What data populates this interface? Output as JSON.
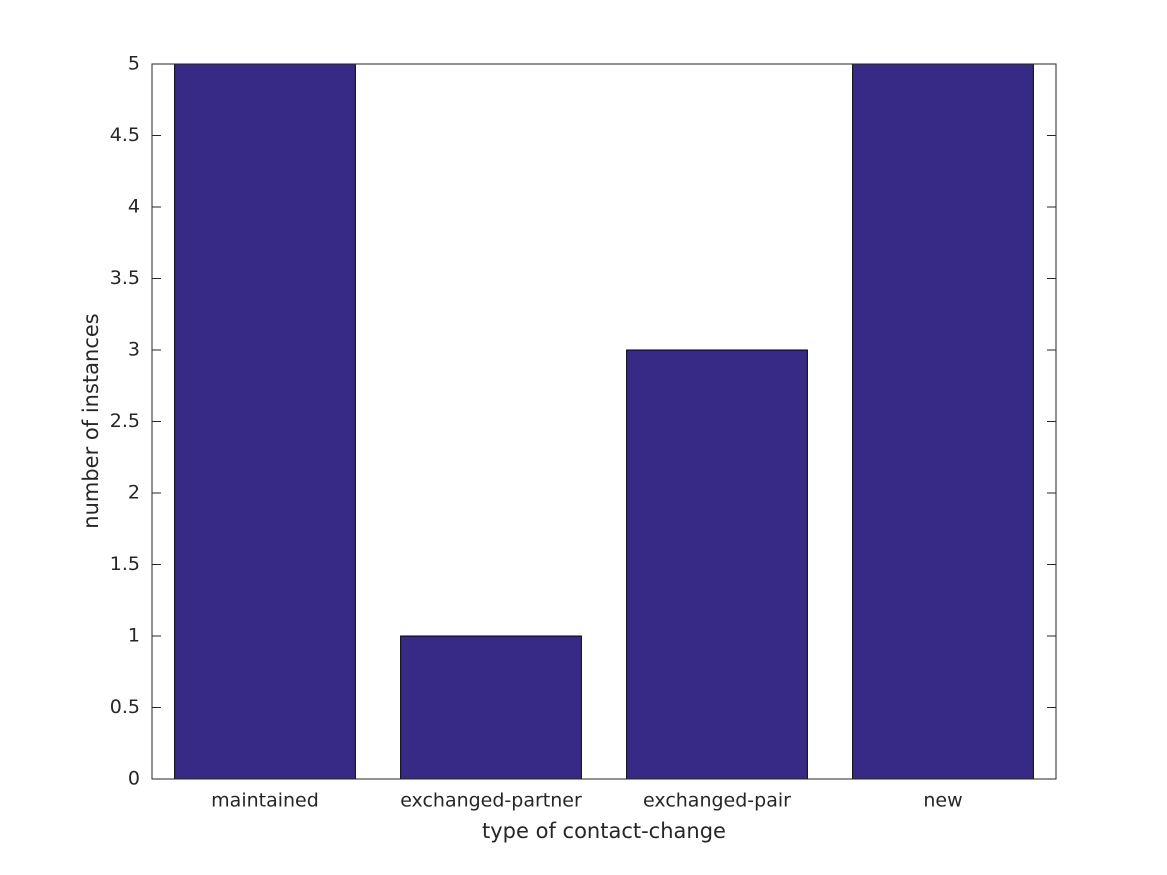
{
  "chart_data": {
    "type": "bar",
    "categories": [
      "maintained",
      "exchanged-partner",
      "exchanged-pair",
      "new"
    ],
    "values": [
      5,
      1,
      3,
      5
    ],
    "color": "#372a87",
    "xlabel": "type of contact-change",
    "ylabel": "number of instances",
    "ylim": [
      0,
      5
    ],
    "yticks": [
      0,
      0.5,
      1,
      1.5,
      2,
      2.5,
      3,
      3.5,
      4,
      4.5,
      5
    ],
    "grid": false
  }
}
